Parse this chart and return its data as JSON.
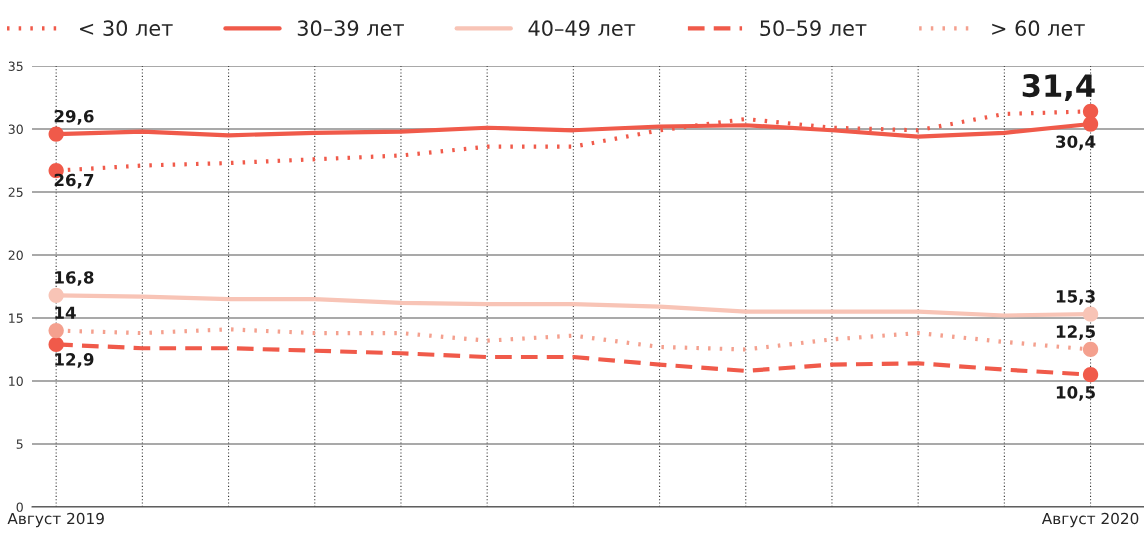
{
  "chart_data": {
    "type": "line",
    "categories": [
      "Август 2019",
      null,
      null,
      null,
      null,
      null,
      null,
      null,
      null,
      null,
      null,
      null,
      "Август 2020"
    ],
    "series": [
      {
        "name": "< 30 лет",
        "color": "#f05a4a",
        "line_style": "dotted",
        "values": [
          26.7,
          27.1,
          27.3,
          27.6,
          27.9,
          28.6,
          28.6,
          29.9,
          30.8,
          30.1,
          29.9,
          31.2,
          31.4
        ],
        "value_labels": [
          "26,7",
          null,
          null,
          null,
          null,
          null,
          null,
          null,
          null,
          null,
          null,
          null,
          "31,4"
        ]
      },
      {
        "name": "30–39 лет",
        "color": "#f05a4a",
        "line_style": "solid",
        "values": [
          29.6,
          29.8,
          29.5,
          29.7,
          29.8,
          30.1,
          29.9,
          30.2,
          30.3,
          29.9,
          29.4,
          29.7,
          30.4
        ],
        "value_labels": [
          "29,6",
          null,
          null,
          null,
          null,
          null,
          null,
          null,
          null,
          null,
          null,
          null,
          "30,4"
        ]
      },
      {
        "name": "40–49 лет",
        "color": "#f8c4b6",
        "line_style": "solid",
        "values": [
          16.8,
          16.7,
          16.5,
          16.5,
          16.2,
          16.1,
          16.1,
          15.9,
          15.5,
          15.5,
          15.5,
          15.2,
          15.3
        ],
        "value_labels": [
          "16,8",
          null,
          null,
          null,
          null,
          null,
          null,
          null,
          null,
          null,
          null,
          null,
          "15,3"
        ]
      },
      {
        "name": "50–59 лет",
        "color": "#f05a4a",
        "line_style": "dashed",
        "values": [
          12.9,
          12.6,
          12.6,
          12.4,
          12.2,
          11.9,
          11.9,
          11.3,
          10.8,
          11.3,
          11.4,
          10.9,
          10.5
        ],
        "value_labels": [
          "12,9",
          null,
          null,
          null,
          null,
          null,
          null,
          null,
          null,
          null,
          null,
          null,
          "10,5"
        ]
      },
      {
        "name": "> 60 лет",
        "color": "#f4a08e",
        "line_style": "dotted",
        "values": [
          14.0,
          13.8,
          14.1,
          13.8,
          13.8,
          13.2,
          13.6,
          12.7,
          12.5,
          13.3,
          13.8,
          13.1,
          12.5
        ],
        "value_labels": [
          "14",
          null,
          null,
          null,
          null,
          null,
          null,
          null,
          null,
          null,
          null,
          null,
          "12,5"
        ]
      }
    ],
    "ylim": [
      0,
      35
    ],
    "yticks": [
      0,
      5,
      10,
      15,
      20,
      25,
      30,
      35
    ],
    "grid": true,
    "legend": "top left"
  }
}
